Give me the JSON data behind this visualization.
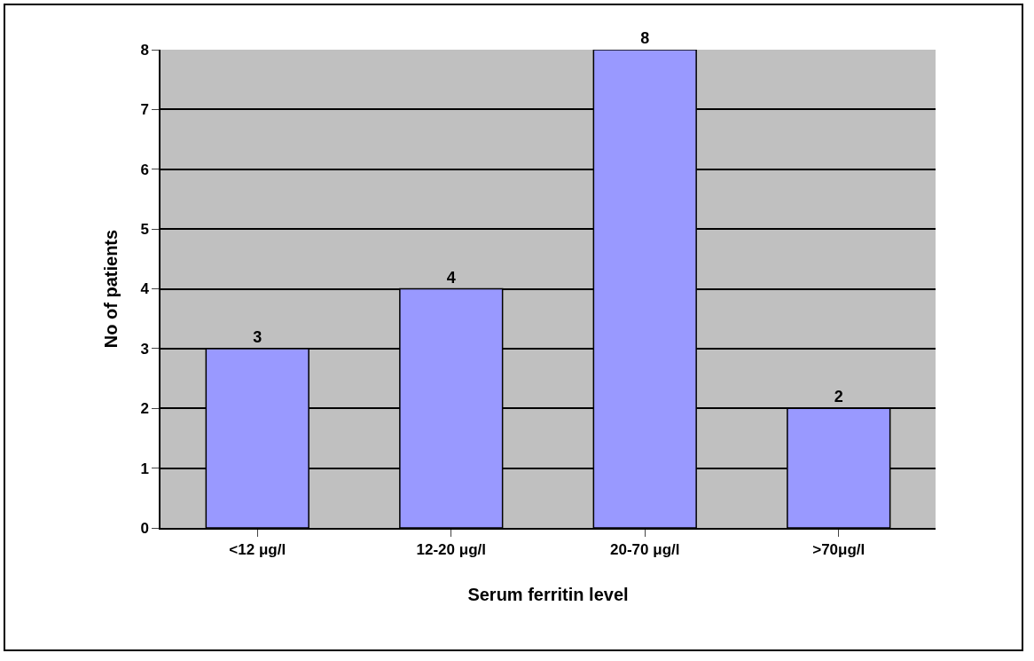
{
  "chart_data": {
    "type": "bar",
    "xlabel": "Serum ferritin level",
    "ylabel": "No of patients",
    "categories": [
      "<12 μg/l",
      "12-20 μg/l",
      "20-70 μg/l",
      ">70μg/l"
    ],
    "values": [
      3,
      4,
      8,
      2
    ],
    "color": "#9999ff",
    "ylim": [
      0,
      8
    ],
    "yticks": [
      0,
      1,
      2,
      3,
      4,
      5,
      6,
      7,
      8
    ],
    "grid": "y",
    "data_labels": true
  }
}
